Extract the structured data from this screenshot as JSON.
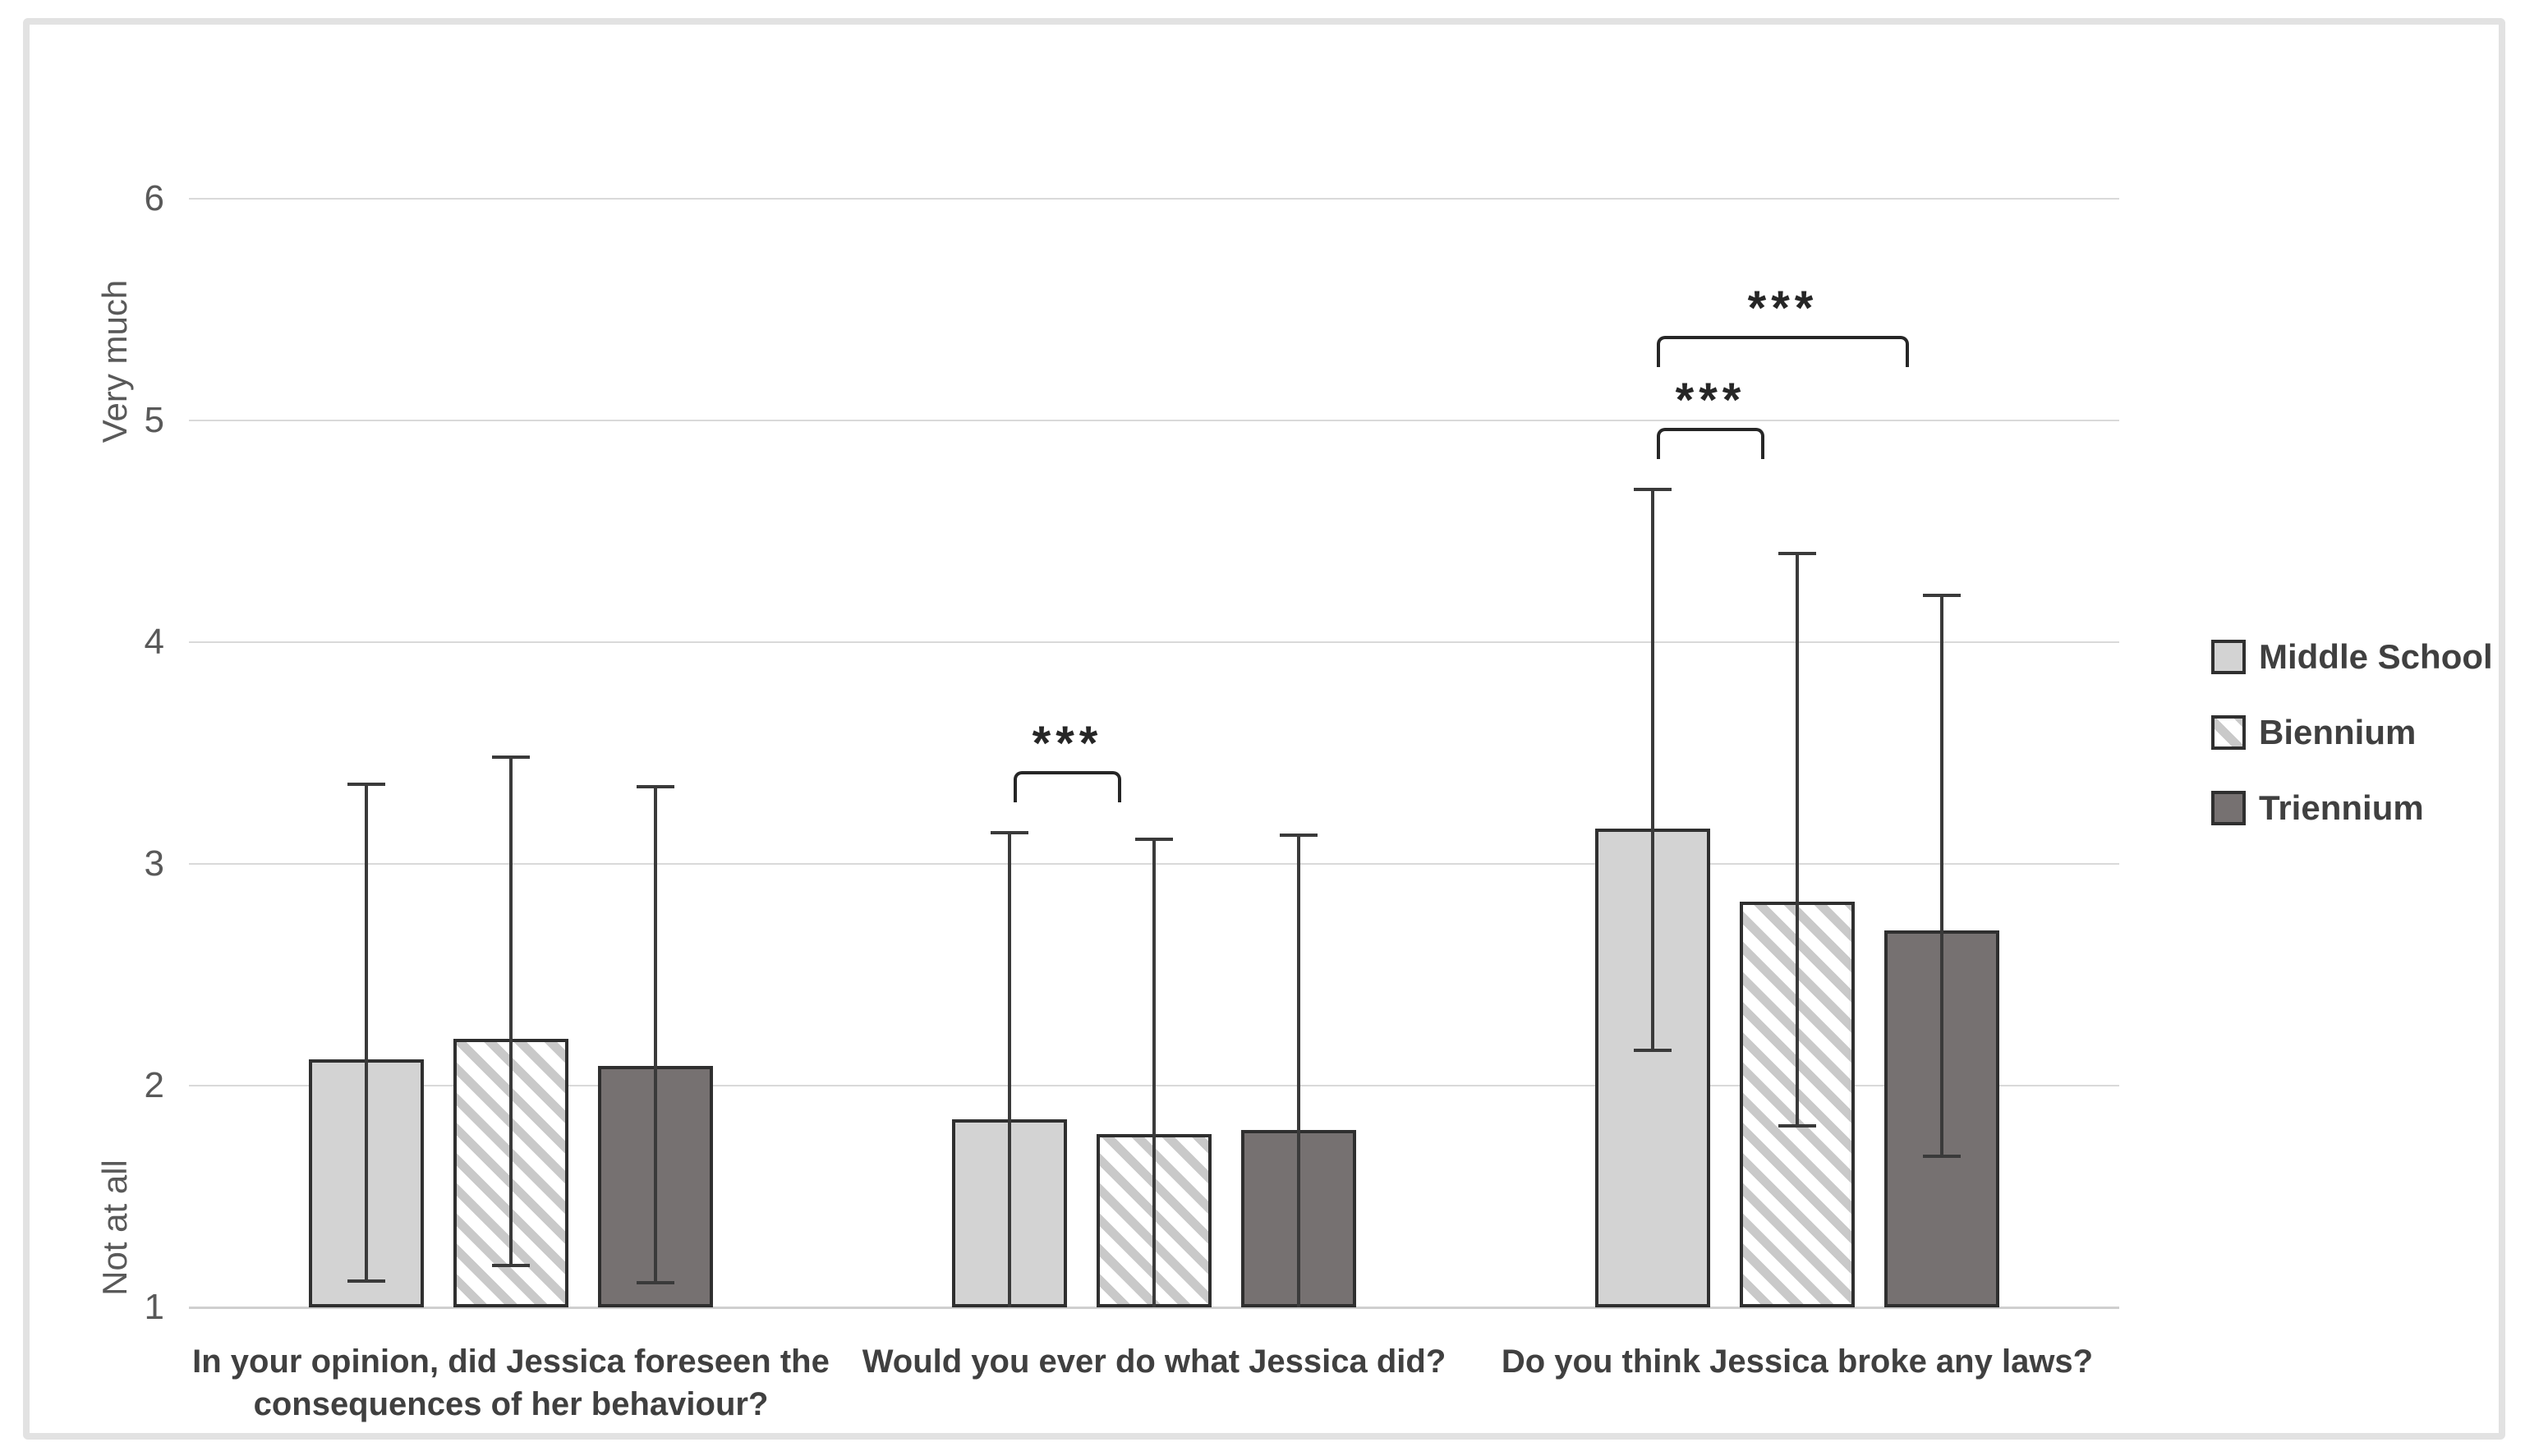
{
  "chart_data": {
    "type": "bar",
    "title": "",
    "categories": [
      "In your opinion, did Jessica foreseen the consequences of her behaviour?",
      "Would you ever do what Jessica did?",
      "Do you think Jessica broke any laws?"
    ],
    "series": [
      {
        "name": "Middle School",
        "pattern": "solid-light",
        "values": [
          2.12,
          1.85,
          3.16
        ],
        "error_upper": [
          3.36,
          3.14,
          4.69
        ],
        "error_lower": [
          1.12,
          1.0,
          2.16
        ]
      },
      {
        "name": "Biennium",
        "pattern": "hatch",
        "values": [
          2.21,
          1.78,
          2.83
        ],
        "error_upper": [
          3.48,
          3.11,
          4.4
        ],
        "error_lower": [
          1.19,
          1.0,
          1.82
        ]
      },
      {
        "name": "Triennium",
        "pattern": "solid-dark",
        "values": [
          2.09,
          1.8,
          2.7
        ],
        "error_upper": [
          3.35,
          3.13,
          4.21
        ],
        "error_lower": [
          1.11,
          1.0,
          1.68
        ]
      }
    ],
    "y_axis": {
      "min": 1,
      "max": 6,
      "ticks": [
        1,
        2,
        3,
        4,
        5,
        6
      ],
      "label_top": "Very much",
      "label_bottom": "Not at all"
    },
    "significance": [
      {
        "category": 2,
        "from_series": 1,
        "to_series": 2,
        "label": "***",
        "level": 1
      },
      {
        "category": 3,
        "from_series": 1,
        "to_series": 2,
        "label": "***",
        "level": 1
      },
      {
        "category": 3,
        "from_series": 1,
        "to_series": 3,
        "label": "***",
        "level": 2
      }
    ],
    "legend": {
      "position": "right",
      "entries": [
        "Middle School",
        "Biennium",
        "Triennium"
      ]
    },
    "grid": "horizontal"
  },
  "colors": {
    "bar_light": "#d3d3d3",
    "bar_dark": "#767171",
    "hatch_stripe": "#c9c9c9",
    "bar_border": "#2f2f2f",
    "error_bar": "#3a3a3a",
    "gridline": "#d9d9d9",
    "axis_line": "#cfcfcf",
    "tick_text": "#595959",
    "label_text": "#404040",
    "frame_border": "#e2e2e2",
    "significance": "#262626"
  }
}
